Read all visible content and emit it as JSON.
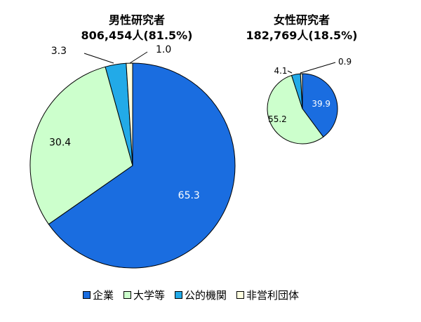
{
  "chart_data": {
    "type": "pie",
    "categories": [
      "企業",
      "大学等",
      "公的機関",
      "非営利団体"
    ],
    "colors": [
      "#1a6de0",
      "#ccffcc",
      "#22aae8",
      "#ffffe0"
    ],
    "pies": [
      {
        "title": "男性研究者",
        "subtitle": "806,454人(81.5%)",
        "values": [
          65.3,
          30.4,
          3.3,
          1.0
        ],
        "labels": [
          "65.3",
          "30.4",
          "3.3",
          "1.0"
        ]
      },
      {
        "title": "女性研究者",
        "subtitle": "182,769人(18.5%)",
        "values": [
          39.9,
          55.2,
          4.1,
          0.9
        ],
        "labels": [
          "39.9",
          "55.2",
          "4.1",
          "0.9"
        ]
      }
    ]
  },
  "legend": [
    "企業",
    "大学等",
    "公的機関",
    "非営利団体"
  ]
}
